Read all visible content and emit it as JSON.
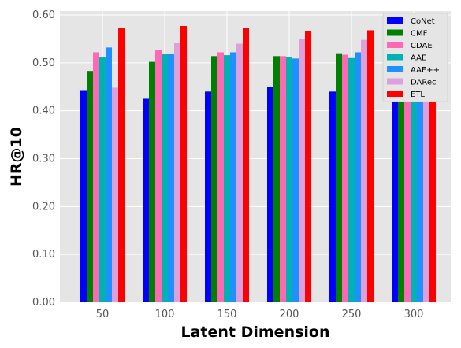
{
  "chart_data": {
    "type": "bar",
    "title": "",
    "xlabel": "Latent Dimension",
    "ylabel": "HR@10",
    "categories": [
      "50",
      "100",
      "150",
      "200",
      "250",
      "300"
    ],
    "ylim": [
      0,
      0.6
    ],
    "yticks": [
      "0.00",
      "0.10",
      "0.20",
      "0.30",
      "0.40",
      "0.50",
      "0.60"
    ],
    "ytick_values": [
      0,
      0.1,
      0.2,
      0.3,
      0.4,
      0.5,
      0.6
    ],
    "grid": true,
    "legend_position": "top-right",
    "series": [
      {
        "name": "CoNet",
        "color": "#0000ff",
        "values": [
          0.443,
          0.425,
          0.44,
          0.45,
          0.44,
          0.45
        ]
      },
      {
        "name": "CMF",
        "color": "#008000",
        "values": [
          0.483,
          0.502,
          0.514,
          0.514,
          0.52,
          0.518
        ]
      },
      {
        "name": "CDAE",
        "color": "#ff69b4",
        "values": [
          0.522,
          0.526,
          0.522,
          0.514,
          0.517,
          0.515
        ]
      },
      {
        "name": "AAE",
        "color": "#00b2b2",
        "values": [
          0.512,
          0.519,
          0.516,
          0.512,
          0.51,
          0.505
        ]
      },
      {
        "name": "AAE++",
        "color": "#1e90ff",
        "values": [
          0.532,
          0.519,
          0.522,
          0.509,
          0.522,
          0.51
        ]
      },
      {
        "name": "DARec",
        "color": "#dda0dd",
        "values": [
          0.448,
          0.542,
          0.54,
          0.55,
          0.548,
          0.545
        ]
      },
      {
        "name": "ETL",
        "color": "#ff0000",
        "values": [
          0.572,
          0.577,
          0.573,
          0.567,
          0.568,
          0.578
        ]
      }
    ]
  }
}
